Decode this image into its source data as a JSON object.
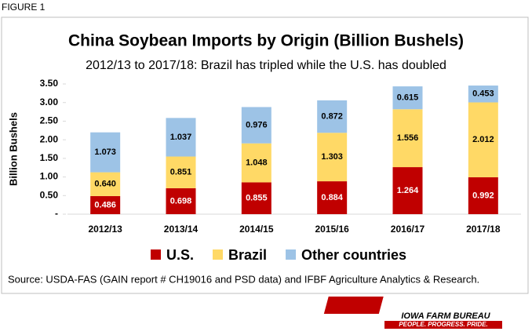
{
  "figure_label": "FIGURE 1",
  "chart_data": {
    "type": "stacked_bar",
    "title": "China Soybean Imports by Origin (Billion Bushels)",
    "subtitle": "2012/13 to 2017/18: Brazil has tripled while the U.S. has doubled",
    "y_label": "Billion Bushels",
    "categories": [
      "2012/13",
      "2013/14",
      "2014/15",
      "2015/16",
      "2016/17",
      "2017/18"
    ],
    "series": [
      {
        "name": "U.S.",
        "color": "#c00000",
        "label_color": "#ffffff",
        "values": [
          0.486,
          0.698,
          0.855,
          0.884,
          1.264,
          0.992
        ],
        "value_labels": [
          "0.486",
          "0.698",
          "0.855",
          "0.884",
          "1.264",
          "0.992"
        ]
      },
      {
        "name": "Brazil",
        "color": "#ffd966",
        "label_color": "#000000",
        "values": [
          0.64,
          0.851,
          1.048,
          1.303,
          1.556,
          2.012
        ],
        "value_labels": [
          "0.640",
          "0.851",
          "1.048",
          "1.303",
          "1.556",
          "2.012"
        ]
      },
      {
        "name": "Other countries",
        "color": "#9dc3e6",
        "label_color": "#000000",
        "values": [
          1.073,
          1.037,
          0.976,
          0.872,
          0.615,
          0.453
        ],
        "value_labels": [
          "1.073",
          "1.037",
          "0.976",
          "0.872",
          "0.615",
          "0.453"
        ]
      }
    ],
    "ylim": [
      0,
      3.5
    ],
    "yticks": [
      {
        "value": 0,
        "label": "-"
      },
      {
        "value": 0.5,
        "label": "0.50"
      },
      {
        "value": 1,
        "label": "1.00"
      },
      {
        "value": 1.5,
        "label": "1.50"
      },
      {
        "value": 2,
        "label": "2.00"
      },
      {
        "value": 2.5,
        "label": "2.50"
      },
      {
        "value": 3,
        "label": "3.00"
      },
      {
        "value": 3.5,
        "label": "3.50"
      }
    ],
    "source": "Source: USDA-FAS (GAIN report # CH19016 and PSD data) and IFBF Agriculture Analytics & Research."
  },
  "logo": {
    "name": "IOWA FARM BUREAU",
    "tagline": "PEOPLE. PROGRESS. PRIDE."
  }
}
